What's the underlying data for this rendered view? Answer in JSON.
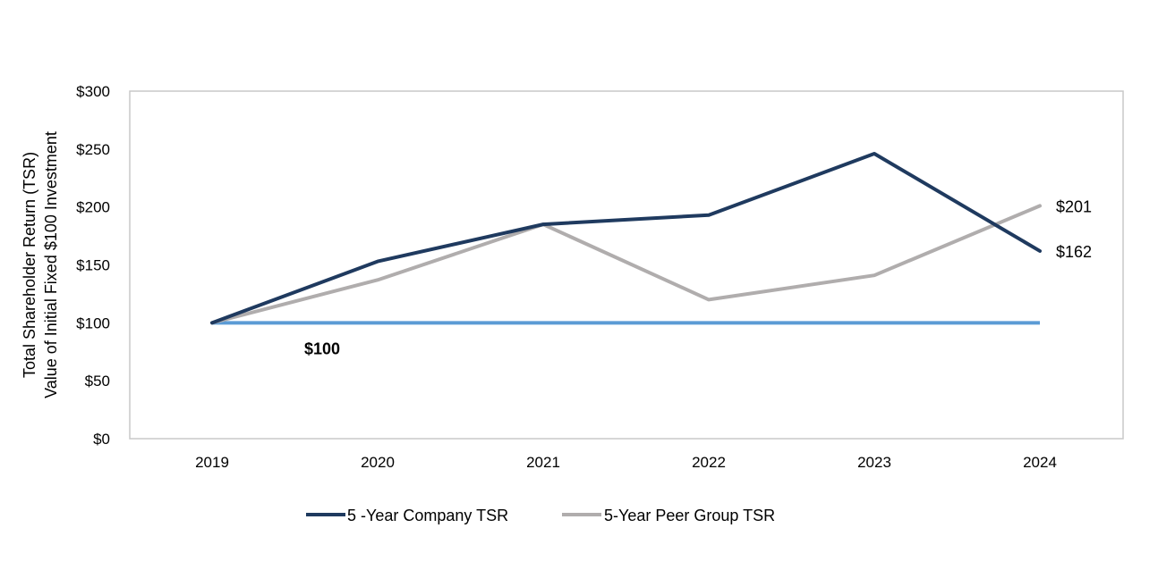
{
  "chart_data": {
    "type": "line",
    "title": "",
    "ylabel_lines": [
      "Total Shareholder Return (TSR)",
      "Value of Initial Fixed $100 Investment"
    ],
    "xlabel": "",
    "categories": [
      "2019",
      "2020",
      "2021",
      "2022",
      "2023",
      "2024"
    ],
    "ylim": [
      0,
      300
    ],
    "yticks": [
      0,
      50,
      100,
      150,
      200,
      250,
      300
    ],
    "ytick_labels": [
      "$0",
      "$50",
      "$100",
      "$150",
      "$200",
      "$250",
      "$300"
    ],
    "grid": false,
    "legend_position": "bottom",
    "series": [
      {
        "name": "5 -Year Company TSR",
        "color": "#1f3a5f",
        "values": [
          100,
          153,
          185,
          193,
          246,
          162
        ]
      },
      {
        "name": "5-Year Peer Group TSR",
        "color": "#b0adad",
        "values": [
          100,
          137,
          185,
          120,
          141,
          201
        ]
      }
    ],
    "baseline": {
      "value": 100,
      "color": "#5b9bd5",
      "label": "$100"
    },
    "end_labels": [
      "$162",
      "$201"
    ]
  }
}
